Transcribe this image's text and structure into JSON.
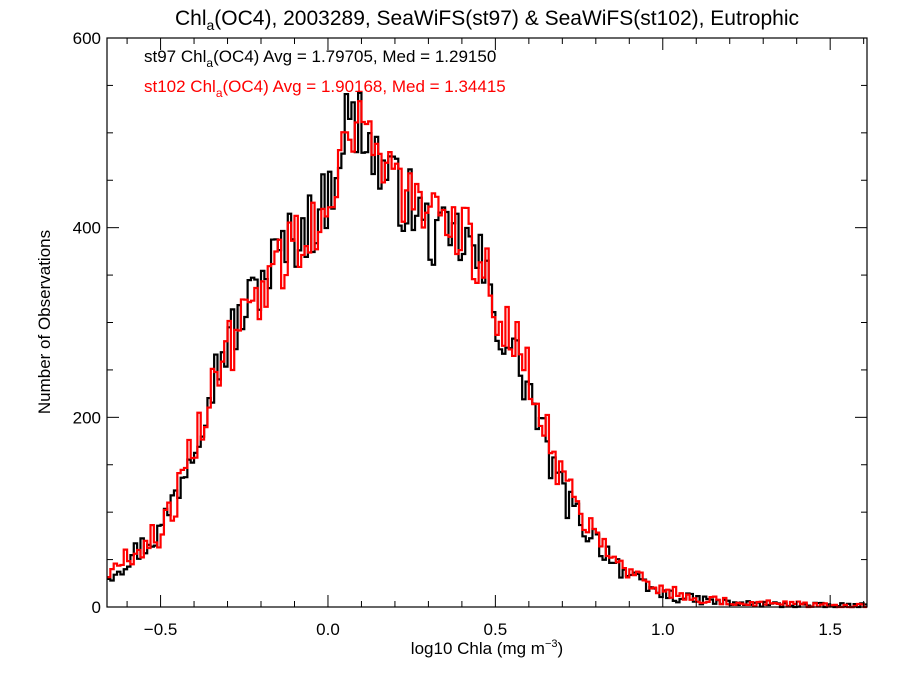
{
  "chart_data": {
    "type": "line",
    "title_main": "Chl",
    "title_sub": "a",
    "title_rest": "(OC4), 2003289, SeaWiFS(st97) & SeaWiFS(st102), Eutrophic",
    "xlabel_main": "log10 Chla (mg m",
    "xlabel_sup": "−3",
    "xlabel_end": ")",
    "ylabel": "Number of Observations",
    "xlim": [
      -0.66,
      1.61
    ],
    "ylim": [
      0,
      600
    ],
    "x_ticks": [
      -0.5,
      0.0,
      0.5,
      1.0,
      1.5
    ],
    "x_tick_labels": [
      "−0.5",
      "0.0",
      "0.5",
      "1.0",
      "1.5"
    ],
    "y_ticks": [
      0,
      200,
      400,
      600
    ],
    "y_tick_labels": [
      "0",
      "200",
      "400",
      "600"
    ],
    "grid": false,
    "legend_position": "top-left",
    "bin_width": 0.01,
    "series": [
      {
        "name_pre": "st97 Chl",
        "name_sub": "a",
        "name_post": "(OC4) Avg = 1.79705, Med = 1.29150",
        "color": "#000000",
        "x": [
          -0.66,
          -0.6,
          -0.55,
          -0.5,
          -0.45,
          -0.4,
          -0.35,
          -0.3,
          -0.25,
          -0.2,
          -0.15,
          -0.1,
          -0.05,
          0.0,
          0.03,
          0.06,
          0.08,
          0.1,
          0.13,
          0.16,
          0.2,
          0.25,
          0.3,
          0.35,
          0.4,
          0.43,
          0.46,
          0.5,
          0.55,
          0.6,
          0.65,
          0.7,
          0.75,
          0.8,
          0.85,
          0.9,
          0.95,
          1.0,
          1.05,
          1.1,
          1.15,
          1.2,
          1.3,
          1.4,
          1.5,
          1.61
        ],
        "y": [
          33,
          50,
          65,
          80,
          125,
          175,
          235,
          280,
          310,
          345,
          370,
          390,
          405,
          430,
          480,
          520,
          500,
          520,
          480,
          465,
          440,
          425,
          395,
          385,
          390,
          375,
          360,
          305,
          270,
          230,
          170,
          120,
          92,
          72,
          52,
          32,
          20,
          14,
          10,
          8,
          6,
          4,
          3,
          2,
          1,
          1
        ]
      },
      {
        "name_pre": "st102 Chl",
        "name_sub": "a",
        "name_post": "(OC4) Avg = 1.90168, Med = 1.34415",
        "color": "#ff0000",
        "x": [
          -0.66,
          -0.6,
          -0.55,
          -0.5,
          -0.45,
          -0.4,
          -0.35,
          -0.3,
          -0.25,
          -0.2,
          -0.15,
          -0.1,
          -0.05,
          0.0,
          0.03,
          0.06,
          0.08,
          0.1,
          0.13,
          0.16,
          0.2,
          0.25,
          0.3,
          0.35,
          0.4,
          0.43,
          0.46,
          0.5,
          0.55,
          0.6,
          0.65,
          0.7,
          0.75,
          0.8,
          0.85,
          0.9,
          0.95,
          1.0,
          1.05,
          1.1,
          1.15,
          1.2,
          1.3,
          1.4,
          1.5,
          1.61
        ],
        "y": [
          35,
          52,
          66,
          78,
          118,
          170,
          228,
          270,
          300,
          335,
          360,
          385,
          400,
          420,
          470,
          515,
          505,
          525,
          490,
          470,
          450,
          430,
          405,
          390,
          395,
          380,
          365,
          320,
          285,
          245,
          190,
          135,
          102,
          82,
          62,
          40,
          26,
          18,
          13,
          10,
          8,
          5,
          4,
          3,
          2,
          1
        ]
      }
    ]
  }
}
